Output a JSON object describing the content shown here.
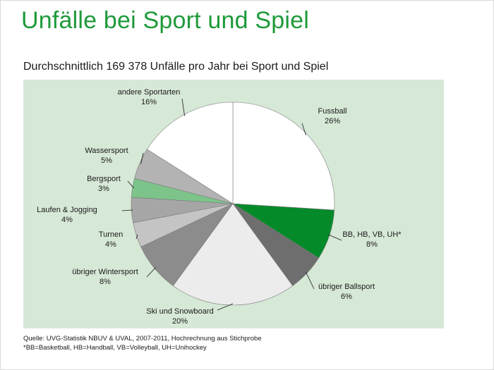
{
  "page": {
    "title": "Unfälle bei Sport und Spiel",
    "subtitle": "Durchschnittlich 169 378 Unfälle pro Jahr bei Sport und Spiel",
    "source_line1": "Quelle: UVG-Statistik NBUV & UVAL, 2007-2011, Hochrechnung aus Stichprobe",
    "source_line2": "*BB=Basketball, HB=Handball, VB=Volleyball, UH=Unihockey"
  },
  "chart_data": {
    "type": "pie",
    "start": "12 o'clock",
    "direction": "clockwise",
    "slices": [
      {
        "label": "Fussball",
        "value": 26,
        "pct_label": "26%",
        "color": "#ffffff"
      },
      {
        "label": "BB, HB, VB, UH*",
        "value": 8,
        "pct_label": "8%",
        "color": "#058a2a"
      },
      {
        "label": "übriger Ballsport",
        "value": 6,
        "pct_label": "6%",
        "color": "#6e6e6e"
      },
      {
        "label": "Ski und Snowboard",
        "value": 20,
        "pct_label": "20%",
        "color": "#ececec"
      },
      {
        "label": "übriger Wintersport",
        "value": 8,
        "pct_label": "8%",
        "color": "#8c8c8c"
      },
      {
        "label": "Turnen",
        "value": 4,
        "pct_label": "4%",
        "color": "#c4c4c4"
      },
      {
        "label": "Laufen & Jogging",
        "value": 4,
        "pct_label": "4%",
        "color": "#a6a6a6"
      },
      {
        "label": "Bergsport",
        "value": 3,
        "pct_label": "3%",
        "color": "#7dc48a"
      },
      {
        "label": "Wassersport",
        "value": 5,
        "pct_label": "5%",
        "color": "#b3b3b3"
      },
      {
        "label": "andere Sportarten",
        "value": 16,
        "pct_label": "16%",
        "color": "#ffffff"
      }
    ]
  }
}
